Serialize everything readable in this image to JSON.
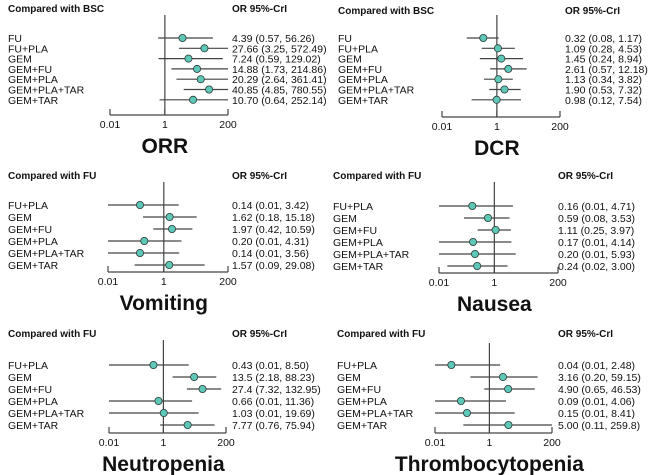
{
  "chart_data": [
    {
      "type": "forest",
      "title": "ORR",
      "comparison": "Compared with BSC",
      "stat_header": "OR  95%-CrI",
      "x_scale": "log",
      "xlim": [
        0.01,
        200
      ],
      "ticks": [
        "0.01",
        "1",
        "200"
      ],
      "reference_line": 1,
      "rows": [
        {
          "label": "FU",
          "or": 4.39,
          "lo": 0.57,
          "hi": 56.26,
          "text": "4.39  (0.57, 56.26)"
        },
        {
          "label": "FU+PLA",
          "or": 27.66,
          "lo": 3.25,
          "hi": 572.49,
          "text": "27.66 (3.25, 572.49)"
        },
        {
          "label": "GEM",
          "or": 7.24,
          "lo": 0.59,
          "hi": 129.02,
          "text": "7.24  (0.59, 129.02)"
        },
        {
          "label": "GEM+FU",
          "or": 14.88,
          "lo": 1.73,
          "hi": 214.86,
          "text": "14.88 (1.73, 214.86)"
        },
        {
          "label": "GEM+PLA",
          "or": 20.29,
          "lo": 2.64,
          "hi": 361.41,
          "text": "20.29 (2.64, 361.41)"
        },
        {
          "label": "GEM+PLA+TAR",
          "or": 40.85,
          "lo": 4.85,
          "hi": 780.55,
          "text": "40.85 (4.85, 780.55)"
        },
        {
          "label": "GEM+TAR",
          "or": 10.7,
          "lo": 0.64,
          "hi": 252.14,
          "text": "10.70 (0.64, 252.14)"
        }
      ]
    },
    {
      "type": "forest",
      "title": "DCR",
      "comparison": "Compared with BSC",
      "stat_header": "OR  95%-CrI",
      "x_scale": "log",
      "xlim": [
        0.01,
        200
      ],
      "ticks": [
        "0.01",
        "1",
        "200"
      ],
      "reference_line": 1,
      "rows": [
        {
          "label": "FU",
          "or": 0.32,
          "lo": 0.08,
          "hi": 1.17,
          "text": "0.32 (0.08, 1.17)"
        },
        {
          "label": "FU+PLA",
          "or": 1.09,
          "lo": 0.28,
          "hi": 4.53,
          "text": "1.09 (0.28, 4.53)"
        },
        {
          "label": "GEM",
          "or": 1.45,
          "lo": 0.24,
          "hi": 8.94,
          "text": "1.45 (0.24, 8.94)"
        },
        {
          "label": "GEM+FU",
          "or": 2.61,
          "lo": 0.57,
          "hi": 12.18,
          "text": "2.61 (0.57, 12.18)"
        },
        {
          "label": "GEM+PLA",
          "or": 1.13,
          "lo": 0.34,
          "hi": 3.82,
          "text": "1.13 (0.34, 3.82)"
        },
        {
          "label": "GEM+PLA+TAR",
          "or": 1.9,
          "lo": 0.53,
          "hi": 7.32,
          "text": "1.90 (0.53, 7.32)"
        },
        {
          "label": "GEM+TAR",
          "or": 0.98,
          "lo": 0.12,
          "hi": 7.54,
          "text": "0.98 (0.12, 7.54)"
        }
      ]
    },
    {
      "type": "forest",
      "title": "Vomiting",
      "comparison": "Compared with FU",
      "stat_header": "OR  95%-CrI",
      "x_scale": "log",
      "xlim": [
        0.01,
        200
      ],
      "ticks": [
        "0.01",
        "1",
        "200"
      ],
      "reference_line": 1,
      "rows": [
        {
          "label": "FU+PLA",
          "or": 0.14,
          "lo": 0.01,
          "hi": 3.42,
          "text": "0.14 (0.01, 3.42)"
        },
        {
          "label": "GEM",
          "or": 1.62,
          "lo": 0.18,
          "hi": 15.18,
          "text": "1.62 (0.18, 15.18)"
        },
        {
          "label": "GEM+FU",
          "or": 1.97,
          "lo": 0.42,
          "hi": 10.59,
          "text": "1.97 (0.42, 10.59)"
        },
        {
          "label": "GEM+PLA",
          "or": 0.2,
          "lo": 0.01,
          "hi": 4.31,
          "text": "0.20 (0.01, 4.31)"
        },
        {
          "label": "GEM+PLA+TAR",
          "or": 0.14,
          "lo": 0.01,
          "hi": 3.56,
          "text": "0.14 (0.01, 3.56)"
        },
        {
          "label": "GEM+TAR",
          "or": 1.57,
          "lo": 0.09,
          "hi": 29.08,
          "text": "1.57 (0.09, 29.08)"
        }
      ]
    },
    {
      "type": "forest",
      "title": "Nausea",
      "comparison": "Compared with FU",
      "stat_header": "OR  95%-CrI",
      "x_scale": "log",
      "xlim": [
        0.01,
        200
      ],
      "ticks": [
        "0.01",
        "1",
        "200"
      ],
      "reference_line": 1,
      "rows": [
        {
          "label": "FU+PLA",
          "or": 0.16,
          "lo": 0.01,
          "hi": 4.71,
          "text": "0.16 (0.01, 4.71)"
        },
        {
          "label": "GEM",
          "or": 0.59,
          "lo": 0.08,
          "hi": 3.53,
          "text": "0.59 (0.08, 3.53)"
        },
        {
          "label": "GEM+FU",
          "or": 1.11,
          "lo": 0.25,
          "hi": 3.97,
          "text": "1.11 (0.25, 3.97)"
        },
        {
          "label": "GEM+PLA",
          "or": 0.17,
          "lo": 0.01,
          "hi": 4.14,
          "text": "0.17 (0.01, 4.14)"
        },
        {
          "label": "GEM+PLA+TAR",
          "or": 0.2,
          "lo": 0.01,
          "hi": 5.93,
          "text": "0.20 (0.01, 5.93)"
        },
        {
          "label": "GEM+TAR",
          "or": 0.24,
          "lo": 0.02,
          "hi": 3.0,
          "text": "0.24 (0.02, 3.00)"
        }
      ]
    },
    {
      "type": "forest",
      "title": "Neutropenia",
      "comparison": "Compared with FU",
      "stat_header": "OR  95%-CrI",
      "x_scale": "log",
      "xlim": [
        0.01,
        200
      ],
      "ticks": [
        "0.01",
        "1",
        "200"
      ],
      "reference_line": 1,
      "rows": [
        {
          "label": "FU+PLA",
          "or": 0.43,
          "lo": 0.01,
          "hi": 8.5,
          "text": "0.43   (0.01, 8.50)"
        },
        {
          "label": "GEM",
          "or": 13.5,
          "lo": 2.18,
          "hi": 88.23,
          "text": "13.5   (2.18, 88.23)"
        },
        {
          "label": "GEM+FU",
          "or": 27.4,
          "lo": 7.32,
          "hi": 132.95,
          "text": "27.4   (7.32, 132.95)"
        },
        {
          "label": "GEM+PLA",
          "or": 0.66,
          "lo": 0.01,
          "hi": 11.36,
          "text": "0.66   (0.01, 11.36)"
        },
        {
          "label": "GEM+PLA+TAR",
          "or": 1.03,
          "lo": 0.01,
          "hi": 19.69,
          "text": "1.03   (0.01, 19.69)"
        },
        {
          "label": "GEM+TAR",
          "or": 7.77,
          "lo": 0.76,
          "hi": 75.94,
          "text": "7.77   (0.76, 75.94)"
        }
      ]
    },
    {
      "type": "forest",
      "title": "Thrombocytopenia",
      "comparison": "Compared with FU",
      "stat_header": "OR  95%-CrI",
      "x_scale": "log",
      "xlim": [
        0.01,
        200
      ],
      "ticks": [
        "0.01",
        "1",
        "200"
      ],
      "reference_line": 1,
      "rows": [
        {
          "label": "FU+PLA",
          "or": 0.04,
          "lo": 0.01,
          "hi": 2.48,
          "text": "0.04 (0.01, 2.48)"
        },
        {
          "label": "GEM",
          "or": 3.16,
          "lo": 0.2,
          "hi": 59.15,
          "text": "3.16 (0.20, 59.15)"
        },
        {
          "label": "GEM+FU",
          "or": 4.9,
          "lo": 0.65,
          "hi": 46.53,
          "text": "4.90 (0.65, 46.53)"
        },
        {
          "label": "GEM+PLA",
          "or": 0.09,
          "lo": 0.01,
          "hi": 4.06,
          "text": "0.09 (0.01, 4.06)"
        },
        {
          "label": "GEM+PLA+TAR",
          "or": 0.15,
          "lo": 0.01,
          "hi": 8.41,
          "text": "0.15 (0.01, 8.41)"
        },
        {
          "label": "GEM+TAR",
          "or": 5.0,
          "lo": 0.11,
          "hi": 259.8,
          "text": "5.00 (0.11, 259.8)"
        }
      ]
    }
  ],
  "colors": {
    "point_fill": "#5ec8b8",
    "point_stroke": "#2a3a38",
    "line": "#444444"
  }
}
